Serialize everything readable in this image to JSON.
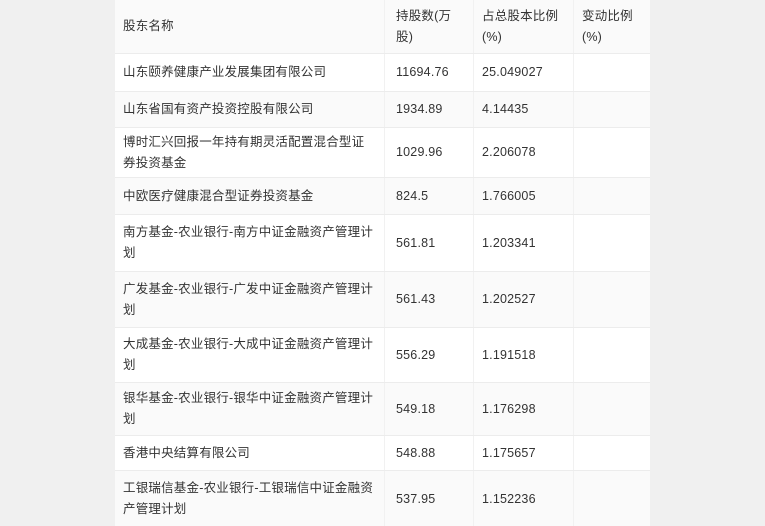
{
  "colors": {
    "page_background": "#f0f0f0",
    "header_background": "#fafafa",
    "row_background": "#ffffff",
    "row_alt_background": "#fafafa",
    "border": "#ececec",
    "text": "#333333"
  },
  "table": {
    "columns": [
      "股东名称",
      "持股数(万股)",
      "占总股本比例(%)",
      "变动比例(%)"
    ],
    "rows": [
      {
        "name": "山东颐养健康产业发展集团有限公司",
        "shares": "11694.76",
        "pct_total": "25.049027",
        "change_pct": ""
      },
      {
        "name": "山东省国有资产投资控股有限公司",
        "shares": "1934.89",
        "pct_total": "4.14435",
        "change_pct": ""
      },
      {
        "name": "博时汇兴回报一年持有期灵活配置混合型证券投资基金",
        "shares": "1029.96",
        "pct_total": "2.206078",
        "change_pct": ""
      },
      {
        "name": "中欧医疗健康混合型证券投资基金",
        "shares": "824.5",
        "pct_total": "1.766005",
        "change_pct": ""
      },
      {
        "name": "南方基金-农业银行-南方中证金融资产管理计划",
        "shares": "561.81",
        "pct_total": "1.203341",
        "change_pct": ""
      },
      {
        "name": "广发基金-农业银行-广发中证金融资产管理计划",
        "shares": "561.43",
        "pct_total": "1.202527",
        "change_pct": ""
      },
      {
        "name": "大成基金-农业银行-大成中证金融资产管理计划",
        "shares": "556.29",
        "pct_total": "1.191518",
        "change_pct": ""
      },
      {
        "name": "银华基金-农业银行-银华中证金融资产管理计划",
        "shares": "549.18",
        "pct_total": "1.176298",
        "change_pct": ""
      },
      {
        "name": "香港中央结算有限公司",
        "shares": "548.88",
        "pct_total": "1.175657",
        "change_pct": ""
      },
      {
        "name": "工银瑞信基金-农业银行-工银瑞信中证金融资产管理计划",
        "shares": "537.95",
        "pct_total": "1.152236",
        "change_pct": ""
      }
    ]
  }
}
